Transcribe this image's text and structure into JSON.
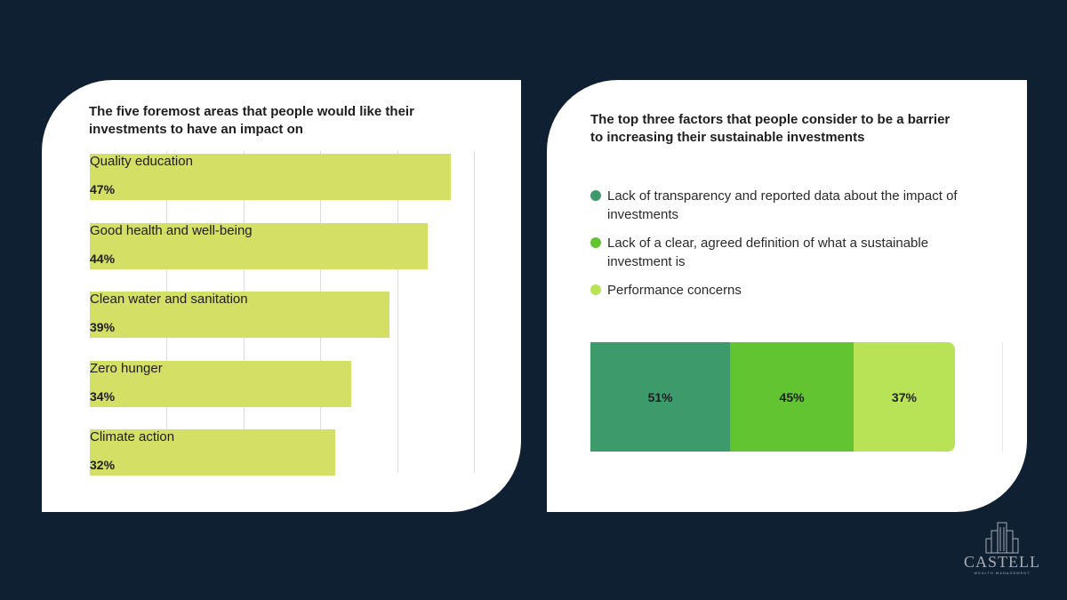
{
  "colors": {
    "background": "#0f2033",
    "card": "#ffffff",
    "bar": "#d4df66",
    "seg1": "#3d9a6b",
    "seg2": "#63c431",
    "seg3": "#b9e356",
    "logo": "#a9adb3"
  },
  "chart_data": [
    {
      "type": "bar",
      "orientation": "horizontal",
      "title": "The five foremost areas that people would like their investments to have an impact on",
      "categories": [
        "Quality education",
        "Good health and well-being",
        "Clean water and sanitation",
        "Zero hunger",
        "Climate action"
      ],
      "values": [
        47,
        44,
        39,
        34,
        32
      ],
      "value_labels": [
        "47%",
        "44%",
        "39%",
        "34%",
        "32%"
      ],
      "xlim": [
        0,
        50
      ],
      "unit": "%",
      "grid": true
    },
    {
      "type": "bar",
      "orientation": "horizontal",
      "stacked": true,
      "title": "The top three factors that people consider to be a barrier to increasing their sustainable investments",
      "categories": [
        "Lack of transparency and reported data about the impact of investments",
        "Lack of a clear, agreed definition of what a sustainable investment is",
        "Performance concerns"
      ],
      "values": [
        51,
        45,
        37
      ],
      "value_labels": [
        "51%",
        "45%",
        "37%"
      ],
      "colors": [
        "#3d9a6b",
        "#63c431",
        "#b9e356"
      ],
      "unit": "%",
      "legend_position": "top"
    }
  ],
  "logo": {
    "name": "CASTELL",
    "subtitle": "WEALTH MANAGEMENT"
  }
}
